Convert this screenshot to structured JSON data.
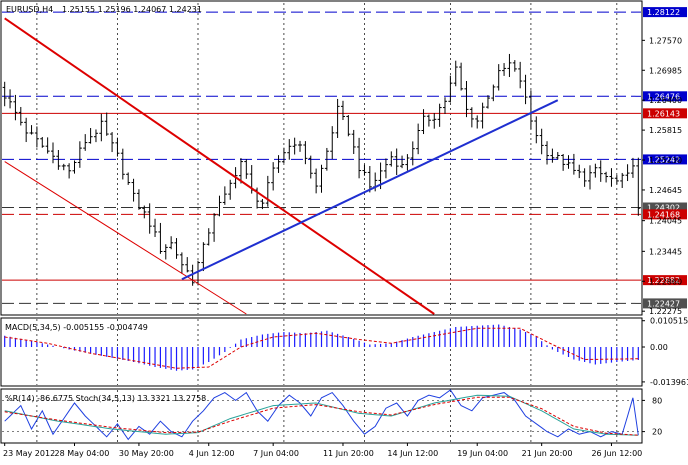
{
  "header": {
    "symbol_timeframe": "EURUSD,H4",
    "ohlc": "1.25155 1.25196 1.24067 1.24231"
  },
  "colors": {
    "up_bar": "#000000",
    "down_bar": "#000000",
    "resistance_line": "#cc0000",
    "support_line": "#0000cc",
    "channel": "#dd0000",
    "trendline": "#1f2fd0",
    "macd_hist": "#1a1aff",
    "macd_signal": "#dd0000",
    "wpr": "#1f40e0",
    "stoch_main": "#2aa39a",
    "stoch_signal": "#dd0000",
    "label_red": "#cc0000",
    "label_blue": "#0000cc",
    "label_gray": "#505050"
  },
  "chart_data": [
    {
      "type": "candlestick",
      "title": "EURUSD,H4",
      "ylim": [
        1.2222,
        1.283
      ],
      "price_scale_ticks": [
        "1.27570",
        "1.26985",
        "1.26400",
        "1.25815",
        "1.25230",
        "1.24645",
        "1.24045",
        "1.23445",
        "1.22860",
        "1.22275"
      ],
      "x_labels": [
        "23 May 2012",
        "28 May 04:00",
        "30 May 20:00",
        "4 Jun 12:00",
        "7 Jun 04:00",
        "11 Jun 20:00",
        "14 Jun 12:00",
        "19 Jun 04:00",
        "21 Jun 20:00",
        "26 Jun 12:00"
      ],
      "close_path": [
        [
          0,
          1.265
        ],
        [
          4,
          1.258
        ],
        [
          8,
          1.254
        ],
        [
          12,
          1.25
        ],
        [
          15,
          1.256
        ],
        [
          18,
          1.259
        ],
        [
          21,
          1.253
        ],
        [
          24,
          1.245
        ],
        [
          27,
          1.24
        ],
        [
          29,
          1.235
        ],
        [
          31,
          1.236
        ],
        [
          33,
          1.232
        ],
        [
          35,
          1.229
        ],
        [
          37,
          1.235
        ],
        [
          39,
          1.242
        ],
        [
          41,
          1.245
        ],
        [
          43,
          1.25
        ],
        [
          44,
          1.252
        ],
        [
          46,
          1.246
        ],
        [
          48,
          1.244
        ],
        [
          50,
          1.25
        ],
        [
          52,
          1.254
        ],
        [
          54,
          1.256
        ],
        [
          56,
          1.253
        ],
        [
          58,
          1.247
        ],
        [
          60,
          1.254
        ],
        [
          62,
          1.262
        ],
        [
          64,
          1.258
        ],
        [
          66,
          1.251
        ],
        [
          68,
          1.247
        ],
        [
          70,
          1.25
        ],
        [
          72,
          1.253
        ],
        [
          74,
          1.251
        ],
        [
          76,
          1.255
        ],
        [
          78,
          1.26
        ],
        [
          80,
          1.261
        ],
        [
          82,
          1.264
        ],
        [
          84,
          1.27
        ],
        [
          86,
          1.262
        ],
        [
          88,
          1.26
        ],
        [
          90,
          1.265
        ],
        [
          92,
          1.269
        ],
        [
          94,
          1.271
        ],
        [
          96,
          1.268
        ],
        [
          98,
          1.26
        ],
        [
          100,
          1.255
        ],
        [
          102,
          1.253
        ],
        [
          104,
          1.252
        ],
        [
          106,
          1.25
        ],
        [
          108,
          1.249
        ],
        [
          110,
          1.25
        ],
        [
          112,
          1.249
        ],
        [
          114,
          1.248
        ],
        [
          116,
          1.249
        ],
        [
          117,
          1.252
        ],
        [
          118,
          1.2423
        ]
      ],
      "horizontal_lines": [
        {
          "label": "1.28122",
          "price": 1.28122,
          "style": "long-dash",
          "color": "#0000cc",
          "tag": "#0000cc"
        },
        {
          "label": "1.26476",
          "price": 1.26476,
          "style": "long-dash",
          "color": "#0000cc",
          "tag": "#0000cc"
        },
        {
          "label": "1.26143",
          "price": 1.26143,
          "style": "solid",
          "color": "#cc0000",
          "tag": "#cc0000"
        },
        {
          "label": "1.25242",
          "price": 1.25242,
          "style": "long-dash",
          "color": "#0000cc",
          "tag": "#0000cc"
        },
        {
          "label": "1.24302",
          "price": 1.24302,
          "style": "long-dash",
          "color": "#333333",
          "tag": "#505050"
        },
        {
          "label": "1.24168",
          "price": 1.24168,
          "style": "long-dash",
          "color": "#cc0000",
          "tag": "#cc0000"
        },
        {
          "label": "1.22882",
          "price": 1.22882,
          "style": "solid",
          "color": "#cc0000",
          "tag": "#cc0000"
        },
        {
          "label": "1.22427",
          "price": 1.22427,
          "style": "long-dash",
          "color": "#333333",
          "tag": "#505050"
        }
      ],
      "trend_lines": [
        {
          "name": "channel-upper",
          "from": [
            0,
            1.28
          ],
          "to": [
            80,
            1.2222
          ],
          "color": "#dd0000",
          "width": 2
        },
        {
          "name": "channel-lower",
          "from": [
            0,
            1.252
          ],
          "to": [
            45,
            1.2222
          ],
          "color": "#dd0000",
          "width": 1
        },
        {
          "name": "uptrend",
          "from": [
            33,
            1.229
          ],
          "to": [
            103,
            1.264
          ],
          "color": "#1f2fd0",
          "width": 2
        }
      ],
      "vertical_grid_bars": [
        6,
        21,
        36,
        52,
        67,
        83,
        98,
        114
      ]
    },
    {
      "type": "histogram",
      "title": "MACD(5,34,5)",
      "header": "MACD(5,34,5) -0.005155 -0.004749",
      "ylim": [
        -0.0152,
        0.0112
      ],
      "price_scale_ticks": [
        "0.010515",
        "0.00",
        "-0.013961"
      ],
      "histogram": [
        [
          0,
          0.0045
        ],
        [
          6,
          0.002
        ],
        [
          12,
          -0.001
        ],
        [
          18,
          -0.0035
        ],
        [
          24,
          -0.006
        ],
        [
          28,
          -0.008
        ],
        [
          32,
          -0.0095
        ],
        [
          35,
          -0.009
        ],
        [
          38,
          -0.006
        ],
        [
          41,
          -0.002
        ],
        [
          44,
          0.003
        ],
        [
          48,
          0.005
        ],
        [
          52,
          0.006
        ],
        [
          56,
          0.0055
        ],
        [
          60,
          0.0065
        ],
        [
          64,
          0.004
        ],
        [
          68,
          0.001
        ],
        [
          72,
          0.0015
        ],
        [
          76,
          0.004
        ],
        [
          80,
          0.006
        ],
        [
          84,
          0.008
        ],
        [
          88,
          0.0085
        ],
        [
          92,
          0.009
        ],
        [
          96,
          0.007
        ],
        [
          99,
          0.004
        ],
        [
          102,
          -0.001
        ],
        [
          106,
          -0.005
        ],
        [
          110,
          -0.007
        ],
        [
          114,
          -0.006
        ],
        [
          118,
          -0.0052
        ]
      ],
      "signal": [
        [
          0,
          0.004
        ],
        [
          8,
          0.0015
        ],
        [
          16,
          -0.0025
        ],
        [
          24,
          -0.0055
        ],
        [
          32,
          -0.0085
        ],
        [
          38,
          -0.008
        ],
        [
          44,
          0.0
        ],
        [
          50,
          0.004
        ],
        [
          58,
          0.0055
        ],
        [
          66,
          0.003
        ],
        [
          72,
          0.0015
        ],
        [
          80,
          0.0045
        ],
        [
          88,
          0.0075
        ],
        [
          96,
          0.0075
        ],
        [
          102,
          0.001
        ],
        [
          108,
          -0.005
        ],
        [
          118,
          -0.0047
        ]
      ]
    },
    {
      "type": "line",
      "title": "%R(14) / Stoch(34,5,13)",
      "header": "%R(14) -86.6775 Stoch(34,5,13) 13.3321 13.2758",
      "ylim": [
        0,
        100
      ],
      "price_scale_ticks": [
        "80",
        "20"
      ],
      "series": [
        {
          "name": "%R(14)",
          "color": "#1f40e0",
          "points": [
            [
              0,
              40
            ],
            [
              3,
              70
            ],
            [
              5,
              25
            ],
            [
              7,
              60
            ],
            [
              9,
              15
            ],
            [
              11,
              45
            ],
            [
              13,
              75
            ],
            [
              15,
              50
            ],
            [
              17,
              30
            ],
            [
              19,
              10
            ],
            [
              21,
              35
            ],
            [
              23,
              5
            ],
            [
              25,
              30
            ],
            [
              27,
              15
            ],
            [
              29,
              40
            ],
            [
              31,
              20
            ],
            [
              33,
              10
            ],
            [
              35,
              40
            ],
            [
              37,
              60
            ],
            [
              39,
              85
            ],
            [
              41,
              95
            ],
            [
              43,
              80
            ],
            [
              45,
              95
            ],
            [
              47,
              60
            ],
            [
              49,
              40
            ],
            [
              51,
              70
            ],
            [
              53,
              90
            ],
            [
              55,
              75
            ],
            [
              57,
              50
            ],
            [
              59,
              85
            ],
            [
              61,
              95
            ],
            [
              63,
              70
            ],
            [
              65,
              40
            ],
            [
              67,
              15
            ],
            [
              69,
              30
            ],
            [
              71,
              65
            ],
            [
              73,
              75
            ],
            [
              75,
              50
            ],
            [
              77,
              80
            ],
            [
              79,
              90
            ],
            [
              81,
              85
            ],
            [
              83,
              100
            ],
            [
              85,
              70
            ],
            [
              87,
              60
            ],
            [
              89,
              85
            ],
            [
              91,
              90
            ],
            [
              93,
              95
            ],
            [
              95,
              80
            ],
            [
              97,
              50
            ],
            [
              99,
              35
            ],
            [
              101,
              20
            ],
            [
              103,
              10
            ],
            [
              105,
              25
            ],
            [
              107,
              15
            ],
            [
              109,
              20
            ],
            [
              111,
              10
            ],
            [
              113,
              20
            ],
            [
              115,
              15
            ],
            [
              117,
              85
            ],
            [
              118,
              13
            ]
          ]
        },
        {
          "name": "Stoch main",
          "color": "#2aa39a",
          "points": [
            [
              0,
              60
            ],
            [
              10,
              40
            ],
            [
              20,
              25
            ],
            [
              30,
              15
            ],
            [
              36,
              18
            ],
            [
              42,
              45
            ],
            [
              50,
              70
            ],
            [
              58,
              75
            ],
            [
              66,
              55
            ],
            [
              72,
              50
            ],
            [
              80,
              75
            ],
            [
              88,
              90
            ],
            [
              94,
              88
            ],
            [
              100,
              60
            ],
            [
              106,
              25
            ],
            [
              112,
              15
            ],
            [
              118,
              13
            ]
          ]
        },
        {
          "name": "Stoch signal",
          "color": "#dd0000",
          "points": [
            [
              0,
              58
            ],
            [
              10,
              42
            ],
            [
              20,
              28
            ],
            [
              30,
              18
            ],
            [
              36,
              19
            ],
            [
              42,
              40
            ],
            [
              50,
              65
            ],
            [
              58,
              72
            ],
            [
              66,
              58
            ],
            [
              72,
              52
            ],
            [
              80,
              72
            ],
            [
              88,
              86
            ],
            [
              94,
              86
            ],
            [
              100,
              64
            ],
            [
              106,
              30
            ],
            [
              112,
              17
            ],
            [
              118,
              13
            ]
          ]
        }
      ]
    }
  ]
}
